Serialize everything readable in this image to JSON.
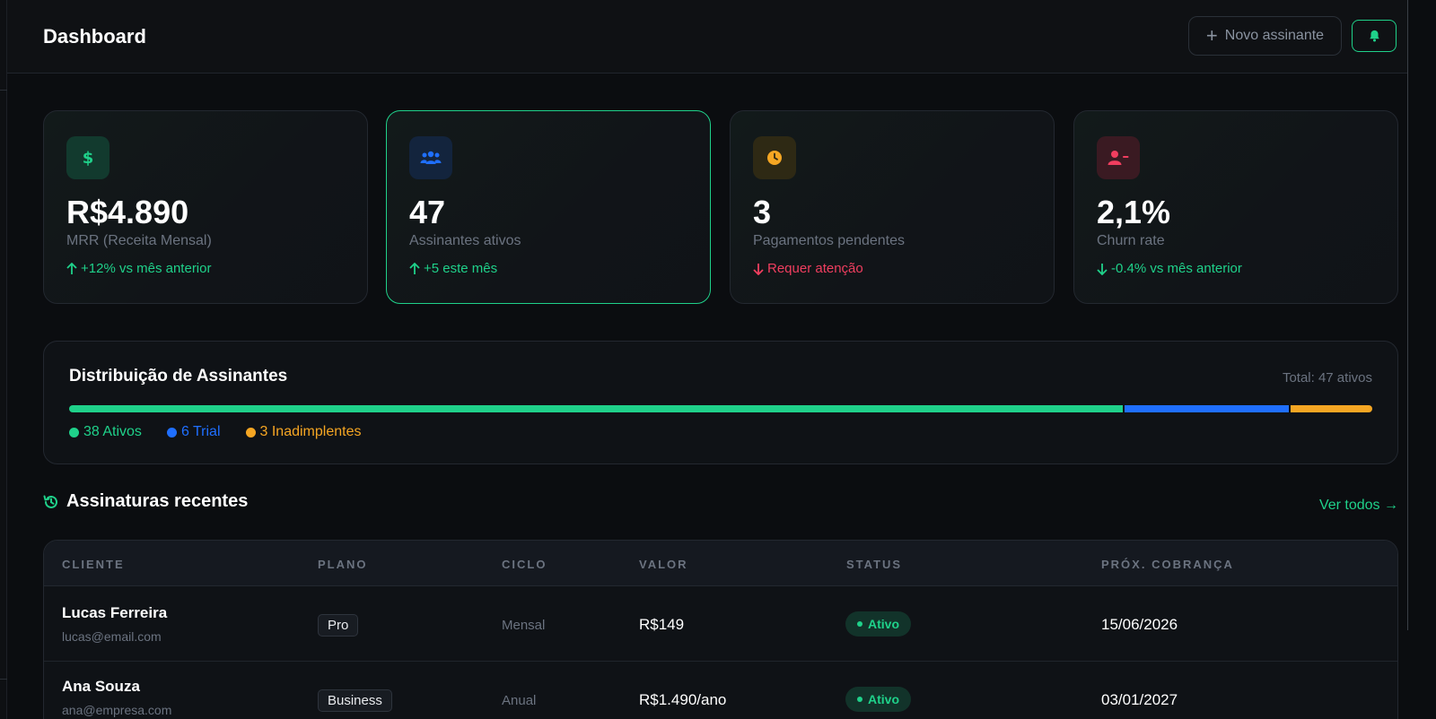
{
  "header": {
    "title": "Dashboard",
    "new_subscriber_label": "Novo assinante"
  },
  "stats": [
    {
      "value": "R$4.890",
      "label": "MRR (Receita Mensal)",
      "trend": "+12% vs mês anterior",
      "trend_direction": "up",
      "trend_color": "#1fd18a",
      "icon": "dollar-icon",
      "icon_color": "#1fd18a",
      "icon_bg": "#123a2e"
    },
    {
      "value": "47",
      "label": "Assinantes ativos",
      "trend": "+5 este mês",
      "trend_direction": "up",
      "trend_color": "#1fd18a",
      "icon": "users-icon",
      "icon_color": "#1f6fff",
      "icon_bg": "#13243d"
    },
    {
      "value": "3",
      "label": "Pagamentos pendentes",
      "trend": "Requer atenção",
      "trend_direction": "down",
      "trend_color": "#f03e5f",
      "icon": "clock-icon",
      "icon_color": "#f5a623",
      "icon_bg": "#2e2914"
    },
    {
      "value": "2,1%",
      "label": "Churn rate",
      "trend": "-0.4% vs mês anterior",
      "trend_direction": "down",
      "trend_color": "#1fd18a",
      "icon": "user-minus-icon",
      "icon_color": "#f03e5f",
      "icon_bg": "#3a1a22"
    }
  ],
  "distribution": {
    "title": "Distribuição de Assinantes",
    "total_label": "Total: 47 ativos",
    "segments": [
      {
        "label": "38 Ativos",
        "count": 38,
        "color": "#1fd18a"
      },
      {
        "label": "6 Trial",
        "count": 6,
        "color": "#1f6fff"
      },
      {
        "label": "3 Inadimplentes",
        "count": 3,
        "color": "#f5a623"
      }
    ]
  },
  "recent": {
    "title": "Assinaturas recentes",
    "see_all_label": "Ver todos →",
    "columns": [
      "CLIENTE",
      "PLANO",
      "CICLO",
      "VALOR",
      "STATUS",
      "PRÓX. COBRANÇA"
    ],
    "rows": [
      {
        "name": "Lucas Ferreira",
        "email": "lucas@email.com",
        "plan": "Pro",
        "cycle": "Mensal",
        "value": "R$149",
        "status": "Ativo",
        "next_charge": "15/06/2026"
      },
      {
        "name": "Ana Souza",
        "email": "ana@empresa.com",
        "plan": "Business",
        "cycle": "Anual",
        "value": "R$1.490/ano",
        "status": "Ativo",
        "next_charge": "03/01/2027"
      }
    ]
  },
  "colors": {
    "accent": "#1fd18a",
    "background": "#0b0d10",
    "card": "#0f1216"
  }
}
